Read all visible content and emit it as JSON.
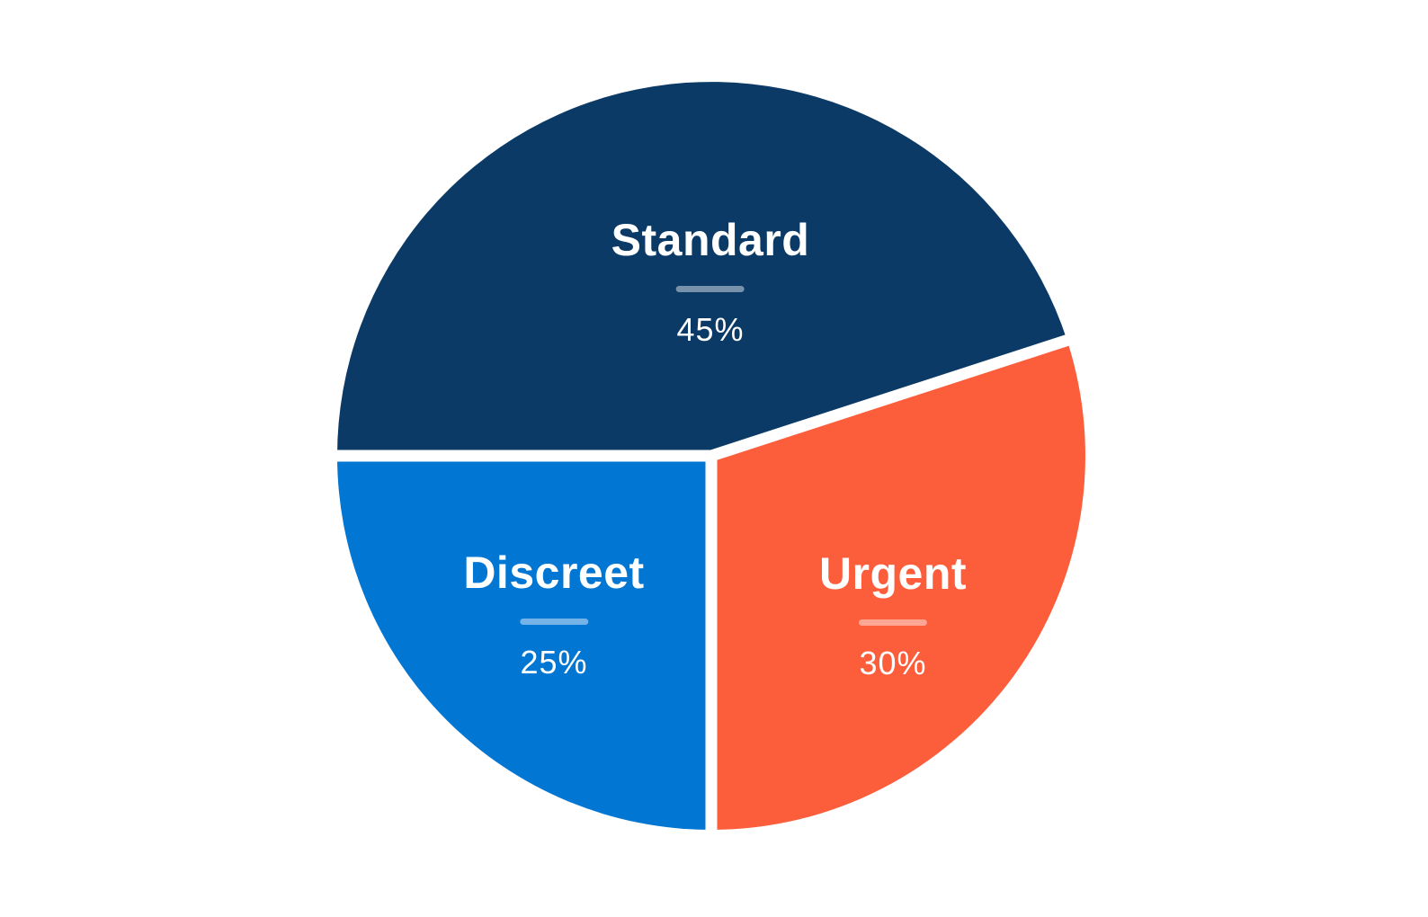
{
  "chart_data": {
    "type": "pie",
    "title": "",
    "slices": [
      {
        "label": "Standard",
        "value": 45,
        "display": "45%",
        "color": "#0B3A66"
      },
      {
        "label": "Urgent",
        "value": 30,
        "display": "30%",
        "color": "#FC5E3C"
      },
      {
        "label": "Discreet",
        "value": 25,
        "display": "25%",
        "color": "#0176D3"
      }
    ],
    "start_angle_deg": 180,
    "direction": "clockwise",
    "separator_color": "#FFFFFF",
    "label_text_color": "#FFFFFF",
    "background": "#FFFFFF",
    "legend_position": "none",
    "labels_inside_slices": true
  }
}
